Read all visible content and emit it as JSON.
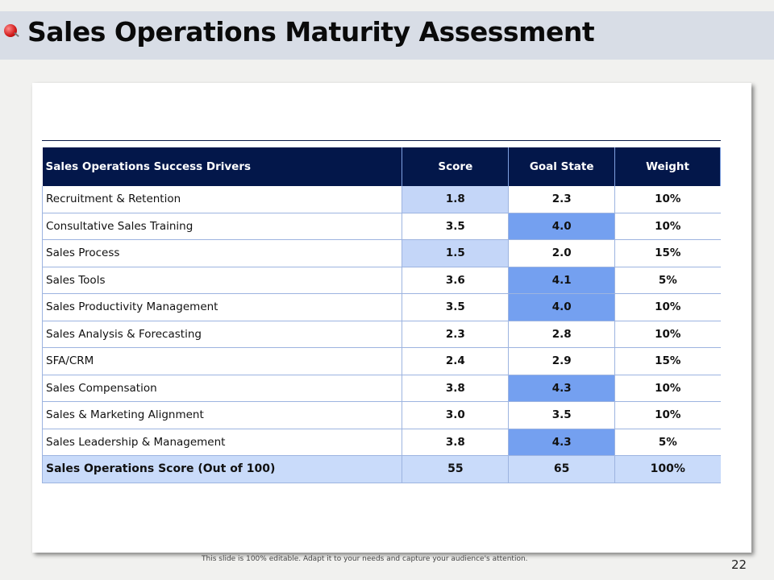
{
  "title": "Sales Operations Maturity Assessment",
  "table": {
    "headers": [
      "Sales Operations Success Drivers",
      "Score",
      "Goal State",
      "Weight"
    ],
    "rows": [
      {
        "driver": "Recruitment & Retention",
        "score": "1.8",
        "goal": "2.3",
        "weight": "10%",
        "score_highlight": 1,
        "goal_highlight": 0
      },
      {
        "driver": "Consultative Sales Training",
        "score": "3.5",
        "goal": "4.0",
        "weight": "10%",
        "score_highlight": 0,
        "goal_highlight": 2
      },
      {
        "driver": "Sales Process",
        "score": "1.5",
        "goal": "2.0",
        "weight": "15%",
        "score_highlight": 1,
        "goal_highlight": 0
      },
      {
        "driver": "Sales Tools",
        "score": "3.6",
        "goal": "4.1",
        "weight": "5%",
        "score_highlight": 0,
        "goal_highlight": 2
      },
      {
        "driver": "Sales Productivity Management",
        "score": "3.5",
        "goal": "4.0",
        "weight": "10%",
        "score_highlight": 0,
        "goal_highlight": 2
      },
      {
        "driver": "Sales Analysis & Forecasting",
        "score": "2.3",
        "goal": "2.8",
        "weight": "10%",
        "score_highlight": 0,
        "goal_highlight": 0
      },
      {
        "driver": "SFA/CRM",
        "score": "2.4",
        "goal": "2.9",
        "weight": "15%",
        "score_highlight": 0,
        "goal_highlight": 0
      },
      {
        "driver": "Sales Compensation",
        "score": "3.8",
        "goal": "4.3",
        "weight": "10%",
        "score_highlight": 0,
        "goal_highlight": 2
      },
      {
        "driver": "Sales & Marketing Alignment",
        "score": "3.0",
        "goal": "3.5",
        "weight": "10%",
        "score_highlight": 0,
        "goal_highlight": 0
      },
      {
        "driver": "Sales Leadership & Management",
        "score": "3.8",
        "goal": "4.3",
        "weight": "5%",
        "score_highlight": 0,
        "goal_highlight": 2
      }
    ],
    "total": {
      "driver": "Sales Operations Score (Out of 100)",
      "score": "55",
      "goal": "65",
      "weight": "100%"
    }
  },
  "footer": "This slide is 100% editable. Adapt it to your needs and capture your audience's attention.",
  "page_number": "22",
  "colors": {
    "header_bg": "#03174a",
    "light_highlight": "#c4d6f8",
    "strong_highlight": "#74a0f0"
  }
}
